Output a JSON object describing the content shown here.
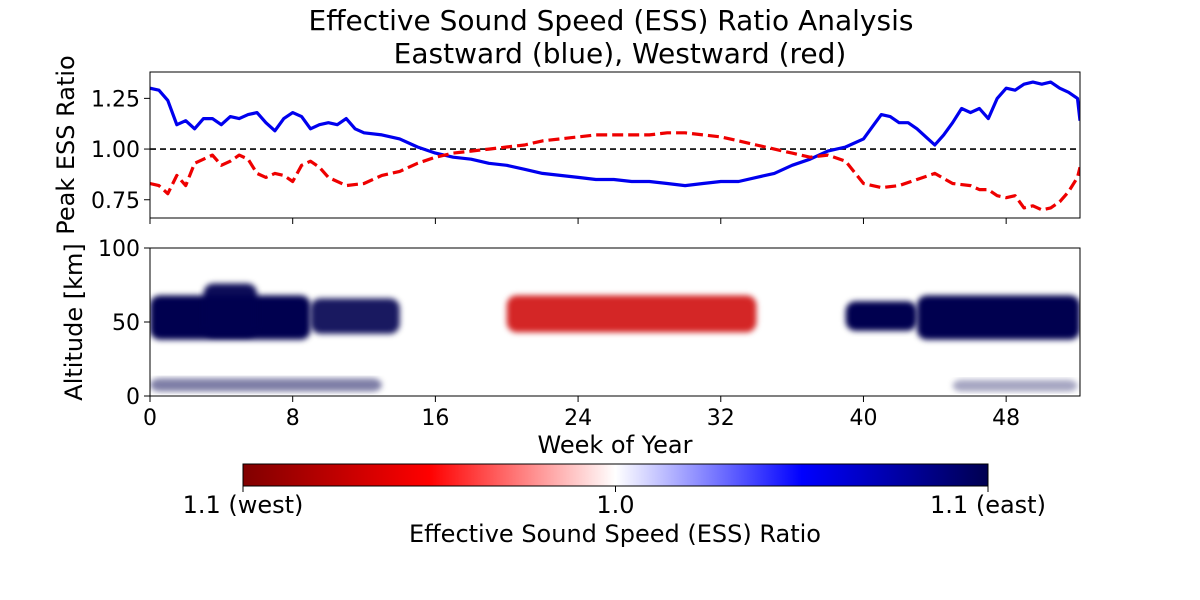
{
  "title_line1": "Effective Sound Speed (ESS) Ratio Analysis",
  "title_line2": "Eastward (blue), Westward (red)",
  "chart_data": [
    {
      "type": "line",
      "ylabel": "Peak ESS Ratio",
      "xlim": [
        0,
        52.14
      ],
      "ylim": [
        0.66,
        1.38
      ],
      "yticks": [
        0.75,
        1.0,
        1.25
      ],
      "ytick_labels": [
        "0.75",
        "1.00",
        "1.25"
      ],
      "reference_line": {
        "y": 1.0,
        "style": "dashed",
        "color": "#000000"
      },
      "series": [
        {
          "color": "#0000ee",
          "style": "solid",
          "x": [
            0,
            0.5,
            1,
            1.5,
            2,
            2.5,
            3,
            3.5,
            4,
            4.5,
            5,
            5.5,
            6,
            6.5,
            7,
            7.5,
            8,
            8.5,
            9,
            9.5,
            10,
            10.5,
            11,
            11.5,
            12,
            13,
            14,
            15,
            16,
            17,
            18,
            19,
            20,
            21,
            22,
            23,
            24,
            25,
            26,
            27,
            28,
            29,
            30,
            31,
            32,
            33,
            34,
            35,
            36,
            37,
            38,
            39,
            40,
            40.5,
            41,
            41.5,
            42,
            42.5,
            43,
            43.5,
            44,
            44.5,
            45,
            45.5,
            46,
            46.5,
            47,
            47.5,
            48,
            48.5,
            49,
            49.5,
            50,
            50.5,
            51,
            51.5,
            52,
            52.14
          ],
          "y": [
            1.3,
            1.29,
            1.24,
            1.12,
            1.14,
            1.1,
            1.15,
            1.15,
            1.12,
            1.16,
            1.15,
            1.17,
            1.18,
            1.13,
            1.09,
            1.15,
            1.18,
            1.16,
            1.1,
            1.12,
            1.13,
            1.12,
            1.15,
            1.1,
            1.08,
            1.07,
            1.05,
            1.01,
            0.98,
            0.96,
            0.95,
            0.93,
            0.92,
            0.9,
            0.88,
            0.87,
            0.86,
            0.85,
            0.85,
            0.84,
            0.84,
            0.83,
            0.82,
            0.83,
            0.84,
            0.84,
            0.86,
            0.88,
            0.92,
            0.95,
            0.99,
            1.01,
            1.05,
            1.11,
            1.17,
            1.16,
            1.13,
            1.13,
            1.1,
            1.06,
            1.02,
            1.07,
            1.13,
            1.2,
            1.18,
            1.2,
            1.15,
            1.25,
            1.3,
            1.29,
            1.32,
            1.33,
            1.32,
            1.33,
            1.3,
            1.28,
            1.25,
            1.14
          ]
        },
        {
          "color": "#ee0000",
          "style": "dashed",
          "x": [
            0,
            0.5,
            1,
            1.5,
            2,
            2.5,
            3,
            3.5,
            4,
            4.5,
            5,
            5.5,
            6,
            6.5,
            7,
            7.5,
            8,
            8.5,
            9,
            9.5,
            10,
            11,
            12,
            13,
            14,
            15,
            16,
            17,
            18,
            19,
            20,
            21,
            22,
            23,
            24,
            25,
            26,
            27,
            28,
            29,
            30,
            31,
            32,
            33,
            34,
            35,
            36,
            37,
            38,
            39,
            40,
            41,
            42,
            43,
            44,
            45,
            46,
            46.5,
            47,
            47.5,
            48,
            48.5,
            49,
            49.5,
            50,
            50.5,
            51,
            51.5,
            52,
            52.14
          ],
          "y": [
            0.83,
            0.82,
            0.78,
            0.87,
            0.82,
            0.93,
            0.95,
            0.97,
            0.92,
            0.94,
            0.97,
            0.95,
            0.88,
            0.86,
            0.88,
            0.87,
            0.84,
            0.92,
            0.94,
            0.91,
            0.86,
            0.82,
            0.83,
            0.87,
            0.89,
            0.93,
            0.96,
            0.98,
            0.99,
            1.0,
            1.01,
            1.02,
            1.04,
            1.05,
            1.06,
            1.07,
            1.07,
            1.07,
            1.07,
            1.08,
            1.08,
            1.07,
            1.06,
            1.04,
            1.02,
            1.0,
            0.98,
            0.96,
            0.97,
            0.94,
            0.83,
            0.81,
            0.82,
            0.85,
            0.88,
            0.83,
            0.82,
            0.8,
            0.8,
            0.77,
            0.76,
            0.77,
            0.71,
            0.72,
            0.7,
            0.71,
            0.74,
            0.79,
            0.86,
            0.91
          ]
        }
      ]
    },
    {
      "type": "heatmap",
      "xlabel": "Week of Year",
      "ylabel": "Altitude [km]",
      "xlim": [
        0,
        52.14
      ],
      "ylim": [
        0,
        100
      ],
      "xticks": [
        0,
        8,
        16,
        24,
        32,
        40,
        48
      ],
      "xtick_labels": [
        "0",
        "8",
        "16",
        "24",
        "32",
        "40",
        "48"
      ],
      "yticks": [
        0,
        50,
        100
      ],
      "ytick_labels": [
        "0",
        "50",
        "100"
      ],
      "regions": [
        {
          "side": "east",
          "intensity": 1.0,
          "week_start": 0,
          "week_end": 9,
          "alt_low": 38,
          "alt_high": 68
        },
        {
          "side": "east",
          "intensity": 0.9,
          "week_start": 9,
          "week_end": 14,
          "alt_low": 42,
          "alt_high": 66
        },
        {
          "side": "east",
          "intensity": 0.95,
          "week_start": 3,
          "week_end": 6,
          "alt_low": 40,
          "alt_high": 76
        },
        {
          "side": "west",
          "intensity": 0.85,
          "week_start": 20,
          "week_end": 34,
          "alt_low": 43,
          "alt_high": 68
        },
        {
          "side": "east",
          "intensity": 1.0,
          "week_start": 39,
          "week_end": 43,
          "alt_low": 44,
          "alt_high": 64
        },
        {
          "side": "east",
          "intensity": 1.0,
          "week_start": 43,
          "week_end": 52.14,
          "alt_low": 38,
          "alt_high": 68
        },
        {
          "side": "east",
          "intensity": 0.5,
          "week_start": 0,
          "week_end": 13,
          "alt_low": 3,
          "alt_high": 12
        },
        {
          "side": "east",
          "intensity": 0.35,
          "week_start": 45,
          "week_end": 52,
          "alt_low": 3,
          "alt_high": 11
        }
      ]
    },
    {
      "type": "colorbar",
      "label": "Effective Sound Speed (ESS) Ratio",
      "tick_labels": [
        "1.1 (west)",
        "1.0",
        "1.1 (east)"
      ],
      "colors": [
        "#800000",
        "#ff0000",
        "#ffffff",
        "#0000ff",
        "#000050"
      ]
    }
  ]
}
